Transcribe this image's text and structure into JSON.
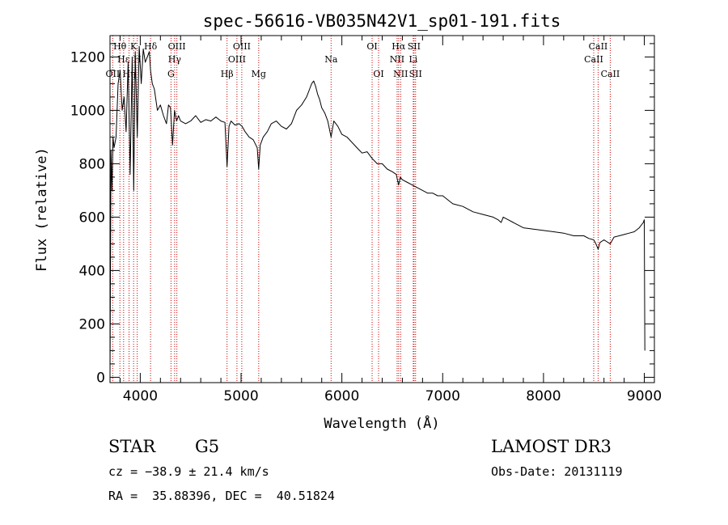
{
  "chart_data": {
    "type": "line",
    "title": "spec-56616-VB035N42V1_sp01-191.fits",
    "xlabel": "Wavelength (Å)",
    "ylabel": "Flux (relative)",
    "xlim": [
      3700,
      9100
    ],
    "ylim": [
      -20,
      1280
    ],
    "xticks": [
      4000,
      5000,
      6000,
      7000,
      8000,
      9000
    ],
    "xtick_labels": [
      "4000",
      "5000",
      "6000",
      "7000",
      "8000",
      "9000"
    ],
    "yticks": [
      0,
      200,
      400,
      600,
      800,
      1000,
      1200
    ],
    "ytick_labels": [
      "0",
      "200",
      "400",
      "600",
      "800",
      "1000",
      "1200"
    ],
    "spectral_lines": [
      {
        "label": "Hθ",
        "wavelength": 3798,
        "row": 1
      },
      {
        "label": "OII",
        "wavelength": 3727,
        "row": 3
      },
      {
        "label": "Hε",
        "wavelength": 3835,
        "row": 2
      },
      {
        "label": "Hη",
        "wavelength": 3889,
        "row": 3
      },
      {
        "label": "K",
        "wavelength": 3934,
        "row": 1
      },
      {
        "label": "H",
        "wavelength": 3970,
        "row": 2
      },
      {
        "label": "Hδ",
        "wavelength": 4102,
        "row": 1
      },
      {
        "label": "OIII",
        "wavelength": 4363,
        "row": 1
      },
      {
        "label": "Hγ",
        "wavelength": 4341,
        "row": 2
      },
      {
        "label": "G",
        "wavelength": 4305,
        "row": 3
      },
      {
        "label": "Hβ",
        "wavelength": 4861,
        "row": 3
      },
      {
        "label": "OIII",
        "wavelength": 5007,
        "row": 1
      },
      {
        "label": "OIII",
        "wavelength": 4959,
        "row": 2
      },
      {
        "label": "Mg",
        "wavelength": 5175,
        "row": 3
      },
      {
        "label": "Na",
        "wavelength": 5893,
        "row": 2
      },
      {
        "label": "OI",
        "wavelength": 6300,
        "row": 1
      },
      {
        "label": "OI",
        "wavelength": 6364,
        "row": 3
      },
      {
        "label": "Hα",
        "wavelength": 6563,
        "row": 1
      },
      {
        "label": "NII",
        "wavelength": 6548,
        "row": 2
      },
      {
        "label": "NII",
        "wavelength": 6583,
        "row": 3
      },
      {
        "label": "SII",
        "wavelength": 6716,
        "row": 1
      },
      {
        "label": "Li",
        "wavelength": 6708,
        "row": 2
      },
      {
        "label": "SII",
        "wavelength": 6731,
        "row": 3
      },
      {
        "label": "CaII",
        "wavelength": 8542,
        "row": 1
      },
      {
        "label": "CaII",
        "wavelength": 8498,
        "row": 2
      },
      {
        "label": "CaII",
        "wavelength": 8662,
        "row": 3
      }
    ],
    "series": [
      {
        "name": "flux",
        "x": [
          3700,
          3710,
          3720,
          3730,
          3740,
          3760,
          3780,
          3800,
          3820,
          3840,
          3860,
          3880,
          3900,
          3920,
          3935,
          3950,
          3970,
          3990,
          4010,
          4030,
          4050,
          4070,
          4090,
          4102,
          4120,
          4140,
          4170,
          4200,
          4230,
          4260,
          4280,
          4300,
          4320,
          4340,
          4360,
          4380,
          4400,
          4450,
          4500,
          4550,
          4600,
          4650,
          4700,
          4750,
          4800,
          4840,
          4861,
          4880,
          4900,
          4940,
          4980,
          5010,
          5040,
          5080,
          5120,
          5160,
          5175,
          5190,
          5220,
          5260,
          5300,
          5350,
          5400,
          5450,
          5500,
          5550,
          5600,
          5650,
          5680,
          5700,
          5720,
          5740,
          5760,
          5780,
          5800,
          5830,
          5860,
          5893,
          5920,
          5960,
          6000,
          6050,
          6100,
          6150,
          6200,
          6250,
          6300,
          6350,
          6400,
          6450,
          6500,
          6540,
          6563,
          6580,
          6600,
          6650,
          6700,
          6750,
          6800,
          6850,
          6900,
          6950,
          7000,
          7100,
          7200,
          7300,
          7400,
          7500,
          7550,
          7580,
          7600,
          7650,
          7700,
          7800,
          7900,
          8000,
          8100,
          8200,
          8300,
          8400,
          8450,
          8498,
          8520,
          8542,
          8560,
          8600,
          8662,
          8700,
          8750,
          8800,
          8850,
          8900,
          8950,
          8990,
          9000,
          9005
        ],
        "y": [
          0,
          850,
          700,
          900,
          860,
          900,
          1100,
          1150,
          1000,
          1050,
          920,
          1180,
          760,
          1200,
          700,
          1220,
          900,
          1240,
          1100,
          1230,
          1180,
          1200,
          1220,
          1150,
          1100,
          1080,
          1000,
          1020,
          980,
          950,
          1020,
          1010,
          870,
          1000,
          960,
          980,
          960,
          950,
          960,
          980,
          955,
          965,
          960,
          975,
          960,
          955,
          790,
          940,
          960,
          945,
          950,
          940,
          920,
          900,
          890,
          860,
          780,
          870,
          900,
          920,
          950,
          960,
          940,
          930,
          950,
          1000,
          1020,
          1050,
          1080,
          1100,
          1110,
          1090,
          1060,
          1040,
          1010,
          990,
          960,
          900,
          960,
          940,
          910,
          900,
          880,
          860,
          840,
          845,
          820,
          800,
          800,
          780,
          770,
          760,
          720,
          750,
          740,
          730,
          720,
          710,
          700,
          690,
          690,
          680,
          680,
          650,
          640,
          620,
          610,
          600,
          590,
          580,
          600,
          590,
          580,
          560,
          555,
          550,
          545,
          540,
          530,
          530,
          520,
          515,
          500,
          480,
          505,
          515,
          500,
          525,
          530,
          535,
          540,
          545,
          560,
          580,
          590,
          100
        ]
      }
    ]
  },
  "info": {
    "class_label": "STAR",
    "subclass": "G5",
    "survey": "LAMOST DR3",
    "cz": "cz = −38.9 ± 21.4 km/s",
    "obs_date": "Obs-Date: 20131119",
    "coords": "RA =  35.88396, DEC =  40.51824"
  }
}
